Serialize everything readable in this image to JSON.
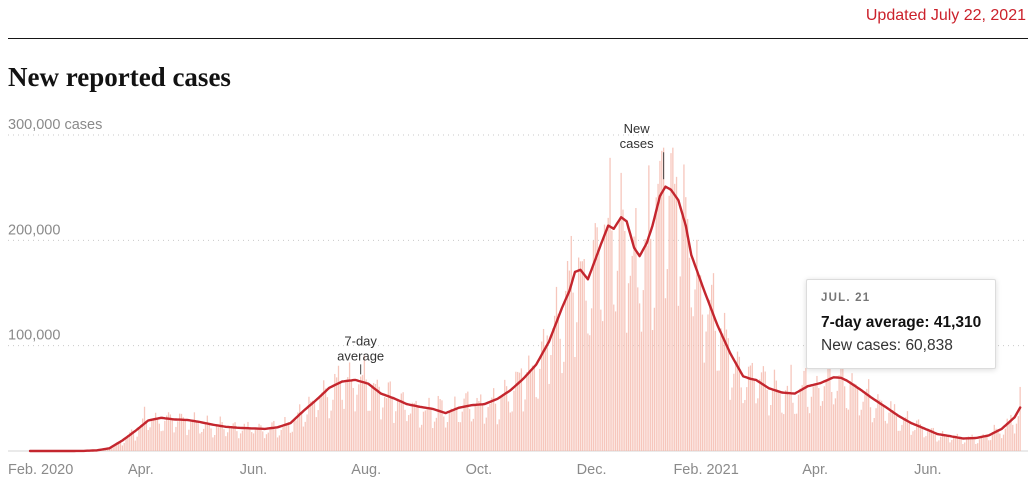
{
  "header": {
    "updated": "Updated July 22, 2021"
  },
  "title": "New reported cases",
  "tooltip": {
    "date": "JUL. 21",
    "avg_label": "7-day average:",
    "avg_value": "41,310",
    "cases_label": "New cases:",
    "cases_value": "60,838"
  },
  "chart_data": {
    "type": "bar+line",
    "title": "New reported cases",
    "subtitle": "Daily new reported Covid-19 cases (bars) and 7-day average (line)",
    "x_domain": [
      "Feb 1, 2020",
      "Jul 22, 2021"
    ],
    "x_total_days": 537,
    "y_unit": "cases",
    "ylim": [
      0,
      300000
    ],
    "grid": "dotted horizontal lines at 100,000 / 200,000 / 300,000",
    "y_ticks": [
      {
        "value": 300000,
        "label": "300,000 cases"
      },
      {
        "value": 200000,
        "label": "200,000"
      },
      {
        "value": 100000,
        "label": "100,000"
      }
    ],
    "x_ticks": [
      {
        "day": 0,
        "label": "Feb. 2020"
      },
      {
        "day": 60,
        "label": "Apr."
      },
      {
        "day": 121,
        "label": "Jun."
      },
      {
        "day": 182,
        "label": "Aug."
      },
      {
        "day": 243,
        "label": "Oct."
      },
      {
        "day": 304,
        "label": "Dec."
      },
      {
        "day": 366,
        "label": "Feb. 2021"
      },
      {
        "day": 425,
        "label": "Apr."
      },
      {
        "day": 486,
        "label": "Jun."
      }
    ],
    "seven_day_avg_points": [
      [
        0,
        0
      ],
      [
        20,
        0
      ],
      [
        29,
        100
      ],
      [
        36,
        600
      ],
      [
        43,
        2600
      ],
      [
        50,
        10000
      ],
      [
        57,
        19000
      ],
      [
        64,
        29000
      ],
      [
        71,
        31500
      ],
      [
        78,
        30000
      ],
      [
        85,
        29500
      ],
      [
        92,
        27500
      ],
      [
        99,
        25000
      ],
      [
        106,
        23000
      ],
      [
        113,
        22000
      ],
      [
        120,
        21500
      ],
      [
        127,
        21000
      ],
      [
        134,
        22500
      ],
      [
        141,
        26500
      ],
      [
        148,
        38000
      ],
      [
        155,
        48500
      ],
      [
        162,
        60000
      ],
      [
        169,
        66000
      ],
      [
        176,
        67500
      ],
      [
        183,
        64000
      ],
      [
        190,
        54500
      ],
      [
        197,
        50000
      ],
      [
        204,
        44500
      ],
      [
        211,
        42000
      ],
      [
        218,
        40000
      ],
      [
        225,
        36000
      ],
      [
        232,
        41000
      ],
      [
        239,
        43500
      ],
      [
        246,
        44500
      ],
      [
        253,
        49500
      ],
      [
        260,
        57500
      ],
      [
        267,
        68500
      ],
      [
        274,
        82000
      ],
      [
        281,
        104000
      ],
      [
        288,
        136000
      ],
      [
        292,
        152000
      ],
      [
        295,
        170000
      ],
      [
        298,
        172000
      ],
      [
        302,
        163000
      ],
      [
        305,
        177000
      ],
      [
        309,
        196000
      ],
      [
        313,
        214000
      ],
      [
        316,
        211000
      ],
      [
        320,
        222000
      ],
      [
        323,
        218000
      ],
      [
        327,
        193000
      ],
      [
        330,
        185000
      ],
      [
        334,
        198000
      ],
      [
        337,
        214000
      ],
      [
        341,
        242000
      ],
      [
        344,
        251000
      ],
      [
        347,
        248000
      ],
      [
        351,
        238000
      ],
      [
        355,
        214000
      ],
      [
        358,
        186000
      ],
      [
        365,
        152000
      ],
      [
        372,
        120000
      ],
      [
        379,
        93000
      ],
      [
        386,
        71000
      ],
      [
        390,
        68500
      ],
      [
        393,
        67500
      ],
      [
        400,
        59500
      ],
      [
        407,
        55500
      ],
      [
        414,
        54500
      ],
      [
        421,
        61500
      ],
      [
        428,
        64500
      ],
      [
        435,
        70000
      ],
      [
        439,
        69500
      ],
      [
        442,
        67000
      ],
      [
        449,
        59000
      ],
      [
        456,
        50000
      ],
      [
        463,
        42000
      ],
      [
        470,
        33500
      ],
      [
        477,
        26500
      ],
      [
        484,
        21500
      ],
      [
        491,
        16200
      ],
      [
        498,
        14100
      ],
      [
        505,
        11900
      ],
      [
        512,
        12300
      ],
      [
        519,
        14800
      ],
      [
        526,
        21000
      ],
      [
        533,
        32000
      ],
      [
        536,
        41310
      ]
    ],
    "daily_bars": {
      "description": "daily new-case bars derived from 7-day average x weekday reporting factor x noise",
      "forced": {
        "342": 285000,
        "536": 60838
      }
    },
    "highlight": {
      "date": "JUL. 21",
      "seven_day_average": 41310,
      "new_cases": 60838
    },
    "annotations": [
      {
        "id": "avg-label",
        "lines": [
          "7-day",
          "average"
        ],
        "day": 179,
        "anchor_value": 68000,
        "tick_gap": 5,
        "tick_len": 10,
        "dx": 0
      },
      {
        "id": "new-cases-label",
        "lines": [
          "New",
          "cases"
        ],
        "day": 343,
        "anchor_value": 258000,
        "tick_gap": 0,
        "tick_len": 27,
        "dx": -27
      }
    ],
    "colors": {
      "accent_red": "#cb212b",
      "line": "#c4262e",
      "bar": "#f5b9ac",
      "grid": "#c9c9c9",
      "baseline": "#d6d6d6",
      "axis_text": "#8a8a8a",
      "annotation_text": "#333333"
    }
  }
}
